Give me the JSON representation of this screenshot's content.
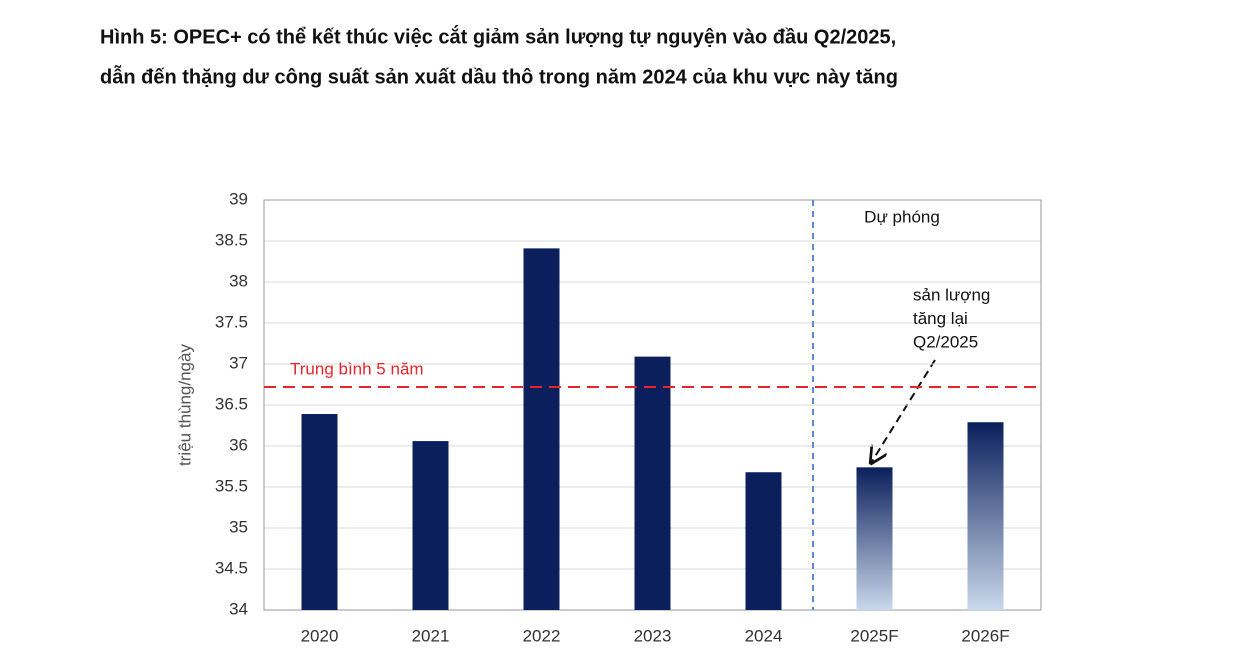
{
  "chart_data": {
    "type": "bar",
    "title": [
      "Hình 5: OPEC+ có thể kết thúc việc cắt giảm sản lượng tự nguyện vào đầu Q2/2025,",
      "dẫn đến thặng dư công suất sản xuất dầu thô trong năm 2024 của khu vực này tăng"
    ],
    "y_label": "triệu thùng/ngày",
    "categories": [
      "2020",
      "2021",
      "2022",
      "2023",
      "2024",
      "2025F",
      "2026F"
    ],
    "values": [
      36.39,
      36.06,
      38.41,
      37.09,
      35.68,
      35.74,
      36.29
    ],
    "color": "#0b1f5c",
    "forecast_from": "2025F",
    "forecast_label": "Dự phóng",
    "forecast_gradient": [
      "#0b1f5c",
      "#c9d8eb"
    ],
    "reference_line": {
      "label": "Trung bình 5 năm",
      "value": 36.72,
      "color": "#e8262a"
    },
    "annotation": [
      "sản lượng",
      "tăng lại",
      "Q2/2025"
    ],
    "ylim": [
      34,
      39
    ],
    "yticks": [
      34,
      34.5,
      35,
      35.5,
      36,
      36.5,
      37,
      37.5,
      38,
      38.5,
      39
    ],
    "grid": true
  }
}
